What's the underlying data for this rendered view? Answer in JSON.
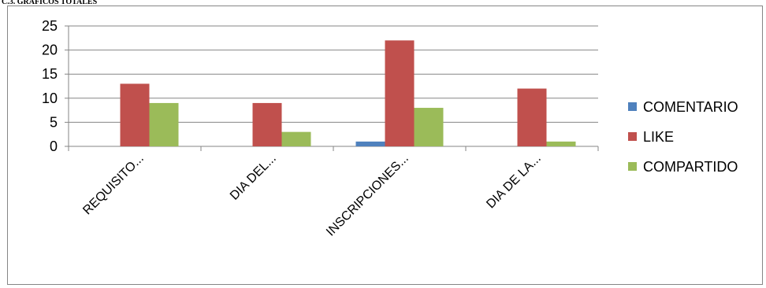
{
  "heading": "C.3. GRAFICOS TOTALES",
  "chart_data": {
    "type": "bar",
    "categories": [
      "REQUISITO...",
      "DIA DEL...",
      "INSCRIPCIONES...",
      "DIA DE LA..."
    ],
    "series": [
      {
        "name": "COMENTARIO",
        "color": "#4F81BD",
        "values": [
          0,
          0,
          1,
          0
        ]
      },
      {
        "name": "LIKE",
        "color": "#C0504D",
        "values": [
          13,
          9,
          22,
          12
        ]
      },
      {
        "name": "COMPARTIDO",
        "color": "#9BBB59",
        "values": [
          9,
          3,
          8,
          1
        ]
      }
    ],
    "ylim": [
      0,
      25
    ],
    "yticks": [
      0,
      5,
      10,
      15,
      20,
      25
    ],
    "grid": true,
    "legend_position": "right"
  }
}
